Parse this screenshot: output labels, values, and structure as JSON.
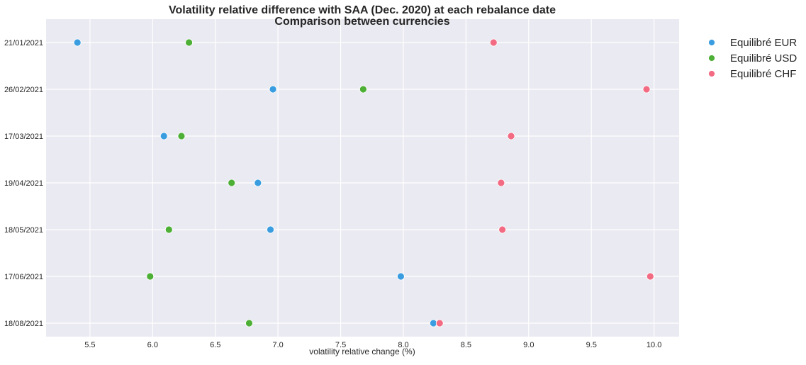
{
  "chart_data": {
    "type": "scatter",
    "title": "Volatility relative difference with SAA (Dec. 2020) at each rebalance date",
    "subtitle": "Comparison between currencies",
    "xlabel": "volatility relative change (%)",
    "ylabel": "",
    "xlim": [
      5.15,
      10.2
    ],
    "xticks": [
      "5.5",
      "6.0",
      "6.5",
      "7.0",
      "7.5",
      "8.0",
      "8.5",
      "9.0",
      "9.5",
      "10.0"
    ],
    "categories": [
      "21/01/2021",
      "26/02/2021",
      "17/03/2021",
      "19/04/2021",
      "18/05/2021",
      "17/06/2021",
      "18/08/2021"
    ],
    "grid": true,
    "legend_position": "outside-top-right",
    "series": [
      {
        "name": "Equilibré EUR",
        "color": "#3a9de0",
        "values": [
          5.4,
          6.96,
          6.09,
          6.84,
          6.94,
          7.98,
          8.24
        ]
      },
      {
        "name": "Equilibré USD",
        "color": "#4daf35",
        "values": [
          6.29,
          7.68,
          6.23,
          6.63,
          6.13,
          5.98,
          6.77
        ]
      },
      {
        "name": "Equilibré CHF",
        "color": "#f26b83",
        "values": [
          8.72,
          9.94,
          8.86,
          8.78,
          8.79,
          9.97,
          8.29
        ]
      }
    ]
  }
}
